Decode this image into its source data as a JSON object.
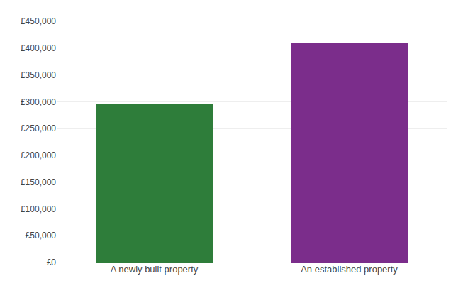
{
  "chart_data": {
    "type": "bar",
    "categories": [
      "A newly built property",
      "An established property"
    ],
    "values": [
      296000,
      410000
    ],
    "colors": [
      "#2e7d3a",
      "#7b2d8b"
    ],
    "ylim": [
      0,
      450000
    ],
    "yticks": [
      {
        "value": 0,
        "label": "£0"
      },
      {
        "value": 50000,
        "label": "£50,000"
      },
      {
        "value": 100000,
        "label": "£100,000"
      },
      {
        "value": 150000,
        "label": "£150,000"
      },
      {
        "value": 200000,
        "label": "£200,000"
      },
      {
        "value": 250000,
        "label": "£250,000"
      },
      {
        "value": 300000,
        "label": "£300,000"
      },
      {
        "value": 350000,
        "label": "£350,000"
      },
      {
        "value": 400000,
        "label": "£400,000"
      },
      {
        "value": 450000,
        "label": "£450,000"
      }
    ],
    "grid": true
  }
}
